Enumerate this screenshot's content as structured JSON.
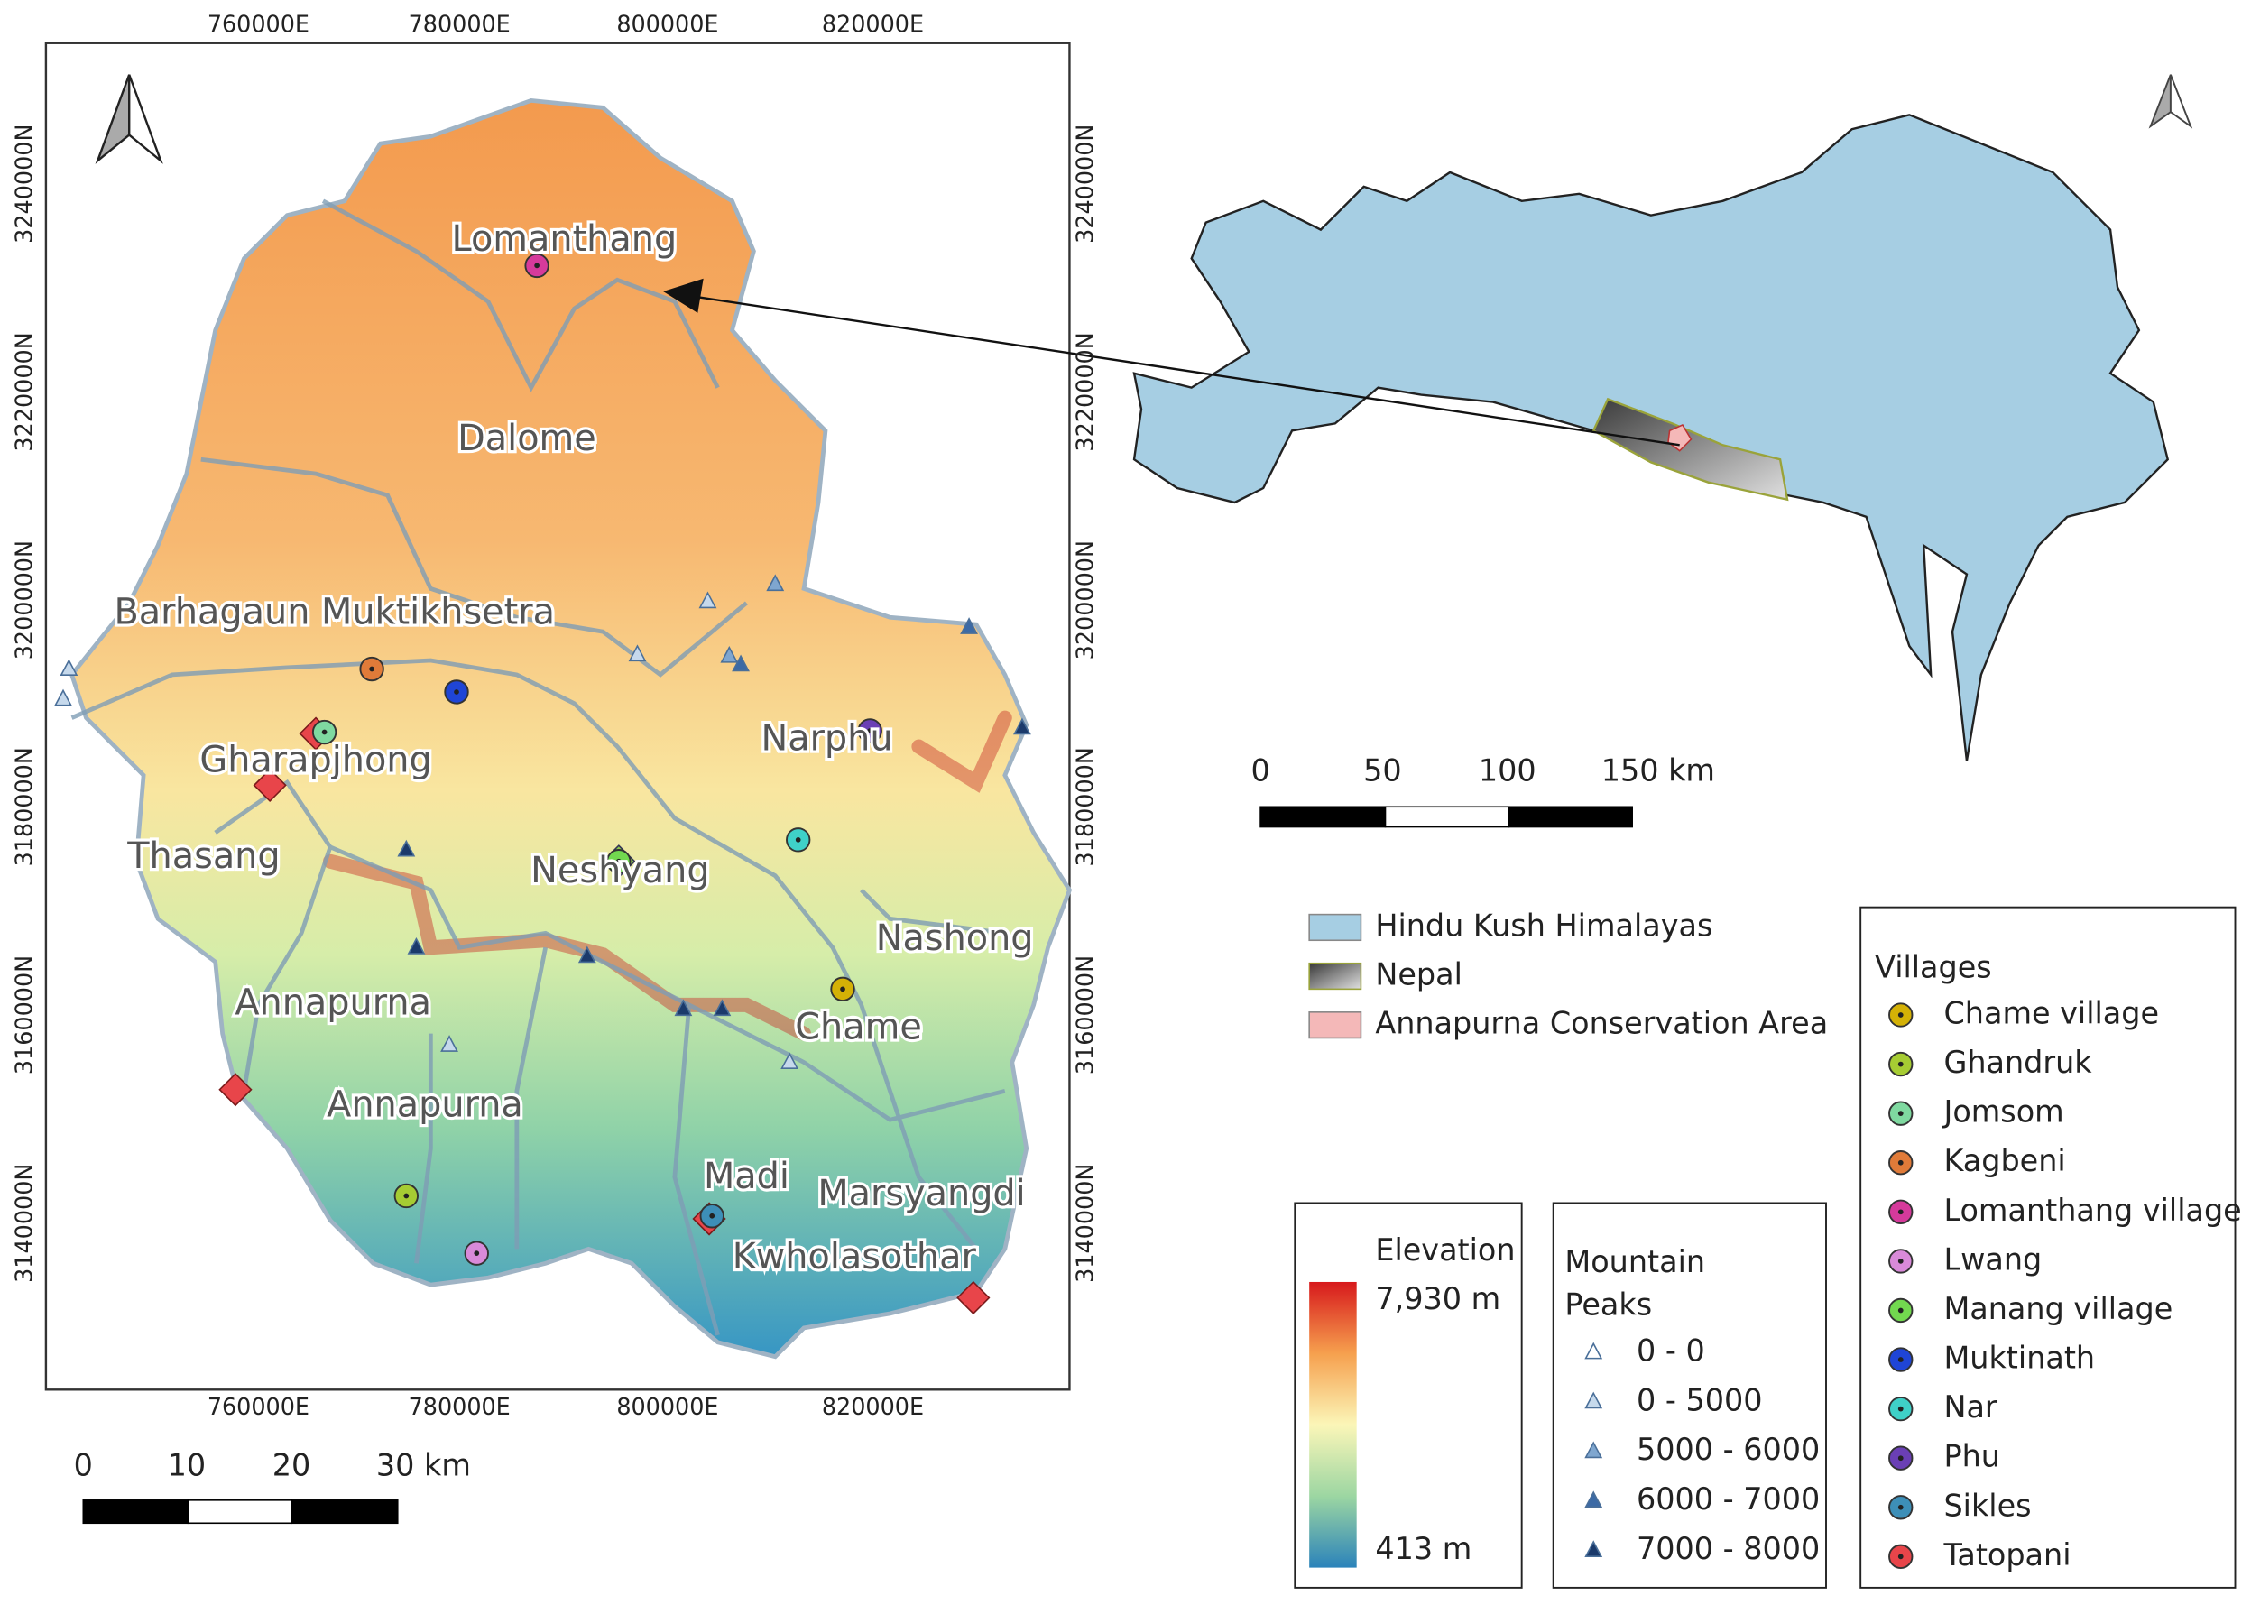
{
  "main_map": {
    "x_ticks": [
      "760000E",
      "780000E",
      "800000E",
      "820000E"
    ],
    "y_ticks": [
      "3140000N",
      "3160000N",
      "3180000N",
      "3200000N",
      "3220000N",
      "3240000N"
    ],
    "place_labels": [
      "Lomanthang",
      "Dalome",
      "Barhagaun Muktikhsetra",
      "Gharapjhong",
      "Thasang",
      "Narphu",
      "Neshyang",
      "Nashong",
      "Annapurna",
      "Chame",
      "Annapurna",
      "Madi",
      "Marsyangdi",
      "Kwholasothar"
    ],
    "scale_bar": [
      "0",
      "10",
      "20",
      "30 km"
    ]
  },
  "inset_map": {
    "scale_bar": [
      "0",
      "50",
      "100",
      "150 km"
    ]
  },
  "region_legend": {
    "items": [
      {
        "label": "Hindu Kush Himalayas",
        "color": "#a6cee3"
      },
      {
        "label": "Nepal",
        "color": "#6f6f6f"
      },
      {
        "label": "Annapurna Conservation Area",
        "color": "#f4b8b8"
      }
    ]
  },
  "villages_legend": {
    "title": "Villages",
    "items": [
      {
        "label": "Chame village",
        "color": "#d4b106"
      },
      {
        "label": "Ghandruk",
        "color": "#a6cc33"
      },
      {
        "label": "Jomsom",
        "color": "#7fd9a0"
      },
      {
        "label": "Kagbeni",
        "color": "#e07b39"
      },
      {
        "label": "Lomanthang village",
        "color": "#d63a9b"
      },
      {
        "label": "Lwang",
        "color": "#d98ad9"
      },
      {
        "label": "Manang village",
        "color": "#72d94f"
      },
      {
        "label": "Muktinath",
        "color": "#1f45d6"
      },
      {
        "label": "Nar",
        "color": "#3fd1c8"
      },
      {
        "label": "Phu",
        "color": "#6a3fb5"
      },
      {
        "label": "Sikles",
        "color": "#3d8fb8"
      },
      {
        "label": "Tatopani",
        "color": "#e8454a"
      }
    ]
  },
  "elevation_legend": {
    "title": "Elevation",
    "max": "7,930 m",
    "min": "413 m"
  },
  "peaks_legend": {
    "title": "Mountain Peaks",
    "items": [
      {
        "label": "0 - 0",
        "color": "#ffffff"
      },
      {
        "label": "0 - 5000",
        "color": "#c6d9ec"
      },
      {
        "label": "5000 - 6000",
        "color": "#7fa6cf"
      },
      {
        "label": "6000 - 7000",
        "color": "#3c6aa5"
      },
      {
        "label": "7000 - 8000",
        "color": "#1b3a6b"
      }
    ]
  }
}
